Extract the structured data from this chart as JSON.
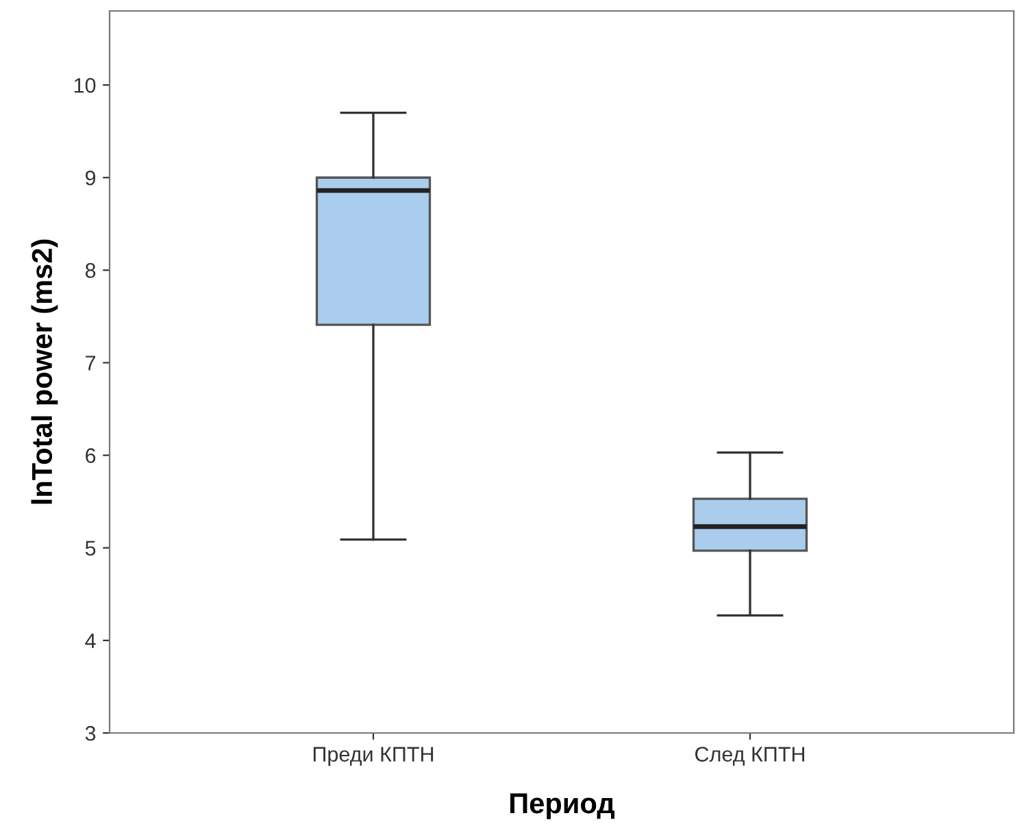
{
  "chart_data": {
    "type": "box",
    "xlabel": "Период",
    "ylabel": "lnTotal power (ms2)",
    "categories": [
      "Преди КПТН",
      "След КПТН"
    ],
    "boxes": [
      {
        "low": 5.09,
        "q1": 7.41,
        "median": 8.86,
        "q3": 9.0,
        "high": 9.7
      },
      {
        "low": 4.27,
        "q1": 4.97,
        "median": 5.23,
        "q3": 5.53,
        "high": 6.03
      }
    ],
    "color": "#aacdee",
    "ylim": [
      3,
      10.8
    ],
    "yticks": [
      3,
      4,
      5,
      6,
      7,
      8,
      9,
      10
    ],
    "grid": false
  }
}
